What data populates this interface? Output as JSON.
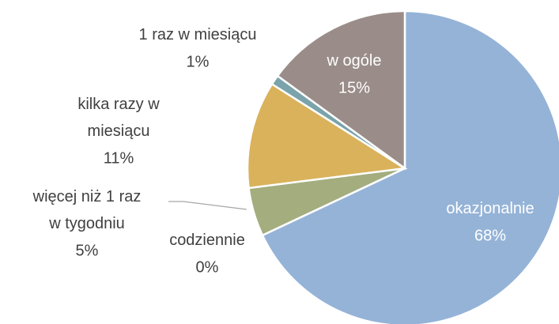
{
  "chart_data": {
    "type": "pie",
    "categories": [
      "okazjonalnie",
      "codziennie",
      "więcej niż 1 raz w tygodniu",
      "kilka razy w miesiącu",
      "1 raz w miesiącu",
      "w ogóle"
    ],
    "values": [
      68,
      0,
      5,
      11,
      1,
      15
    ],
    "value_labels": [
      "68%",
      "0%",
      "5%",
      "11%",
      "1%",
      "15%"
    ],
    "colors": [
      "#95b3d7",
      "#4f6228",
      "#a3ad7e",
      "#d9b25b",
      "#7aa3ab",
      "#9a8d89"
    ]
  }
}
